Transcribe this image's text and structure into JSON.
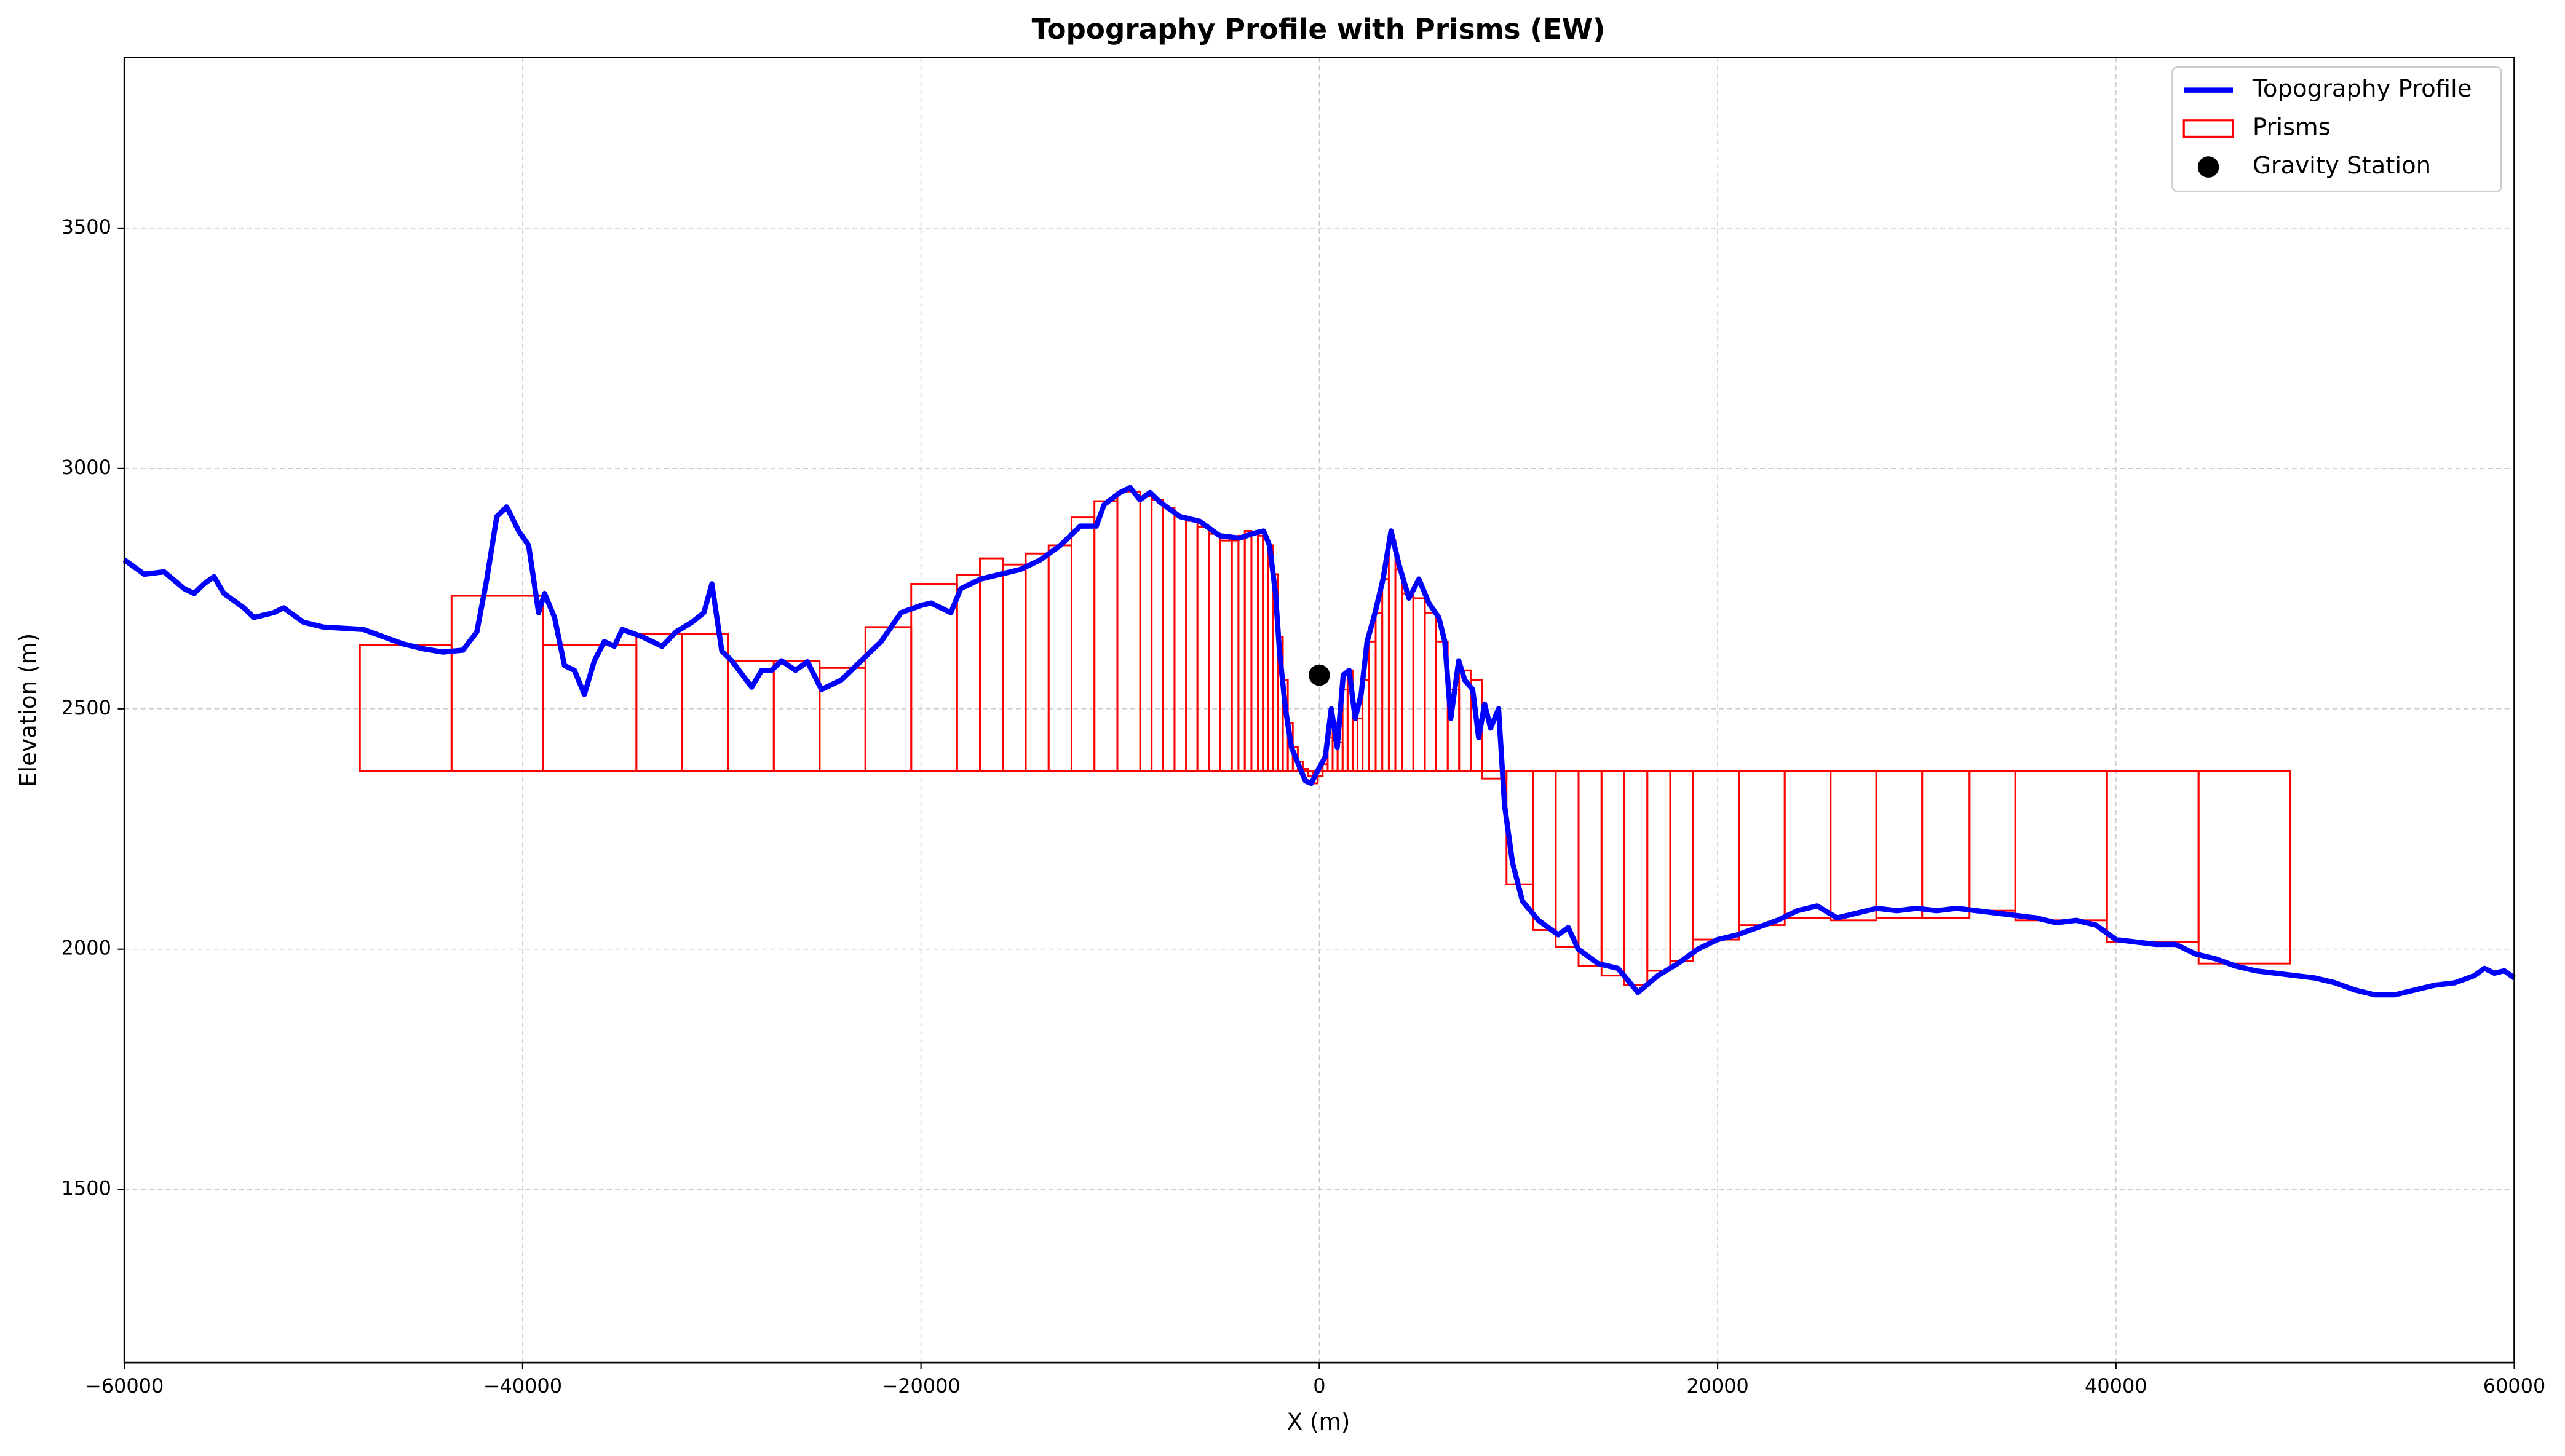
{
  "chart_data": {
    "type": "line",
    "title": "Topography Profile with Prisms (EW)",
    "x_label": "X (m)",
    "y_label": "Elevation (m)",
    "xlim": [
      -60000,
      60000
    ],
    "ylim": [
      1140,
      3855
    ],
    "xticks": [
      {
        "value": -60000,
        "label": "−60000"
      },
      {
        "value": -40000,
        "label": "−40000"
      },
      {
        "value": -20000,
        "label": "−20000"
      },
      0,
      20000,
      40000,
      60000
    ],
    "yticks": [
      1500,
      2000,
      2500,
      3000,
      3500
    ],
    "grid": true,
    "legend": "upper right",
    "series": [
      {
        "name": "Topography Profile",
        "type": "line",
        "color": "#0000ff",
        "x": [
          -60000,
          -59000,
          -58000,
          -57000,
          -56500,
          -56000,
          -55500,
          -55000,
          -54000,
          -53500,
          -52500,
          -52000,
          -51000,
          -50000,
          -48000,
          -47000,
          -46000,
          -45000,
          -44000,
          -43000,
          -42300,
          -41800,
          -41300,
          -40800,
          -40200,
          -39700,
          -39200,
          -38900,
          -38400,
          -37900,
          -37400,
          -36900,
          -36400,
          -35900,
          -35400,
          -35000,
          -34000,
          -33000,
          -32300,
          -31500,
          -30900,
          -30500,
          -30000,
          -29500,
          -28500,
          -28000,
          -27500,
          -27000,
          -26300,
          -25700,
          -25000,
          -24000,
          -23000,
          -22000,
          -21000,
          -20000,
          -19500,
          -18500,
          -18000,
          -17000,
          -16000,
          -15000,
          -14000,
          -13000,
          -12000,
          -11200,
          -10800,
          -10000,
          -9500,
          -9000,
          -8500,
          -8000,
          -7000,
          -6000,
          -5000,
          -4000,
          -3300,
          -2800,
          -2500,
          -2200,
          -2000,
          -1700,
          -1400,
          -1000,
          -700,
          -400,
          -100,
          300,
          600,
          900,
          1200,
          1500,
          1800,
          2100,
          2400,
          2800,
          3200,
          3600,
          4000,
          4500,
          5000,
          5500,
          6000,
          6300,
          6600,
          7000,
          7300,
          7700,
          8000,
          8300,
          8600,
          9000,
          9300,
          9700,
          10200,
          11000,
          12000,
          12500,
          13000,
          14000,
          15000,
          16000,
          17000,
          18000,
          19000,
          20000,
          21000,
          22000,
          23000,
          24000,
          25000,
          26000,
          27000,
          28000,
          29000,
          30000,
          31000,
          32000,
          33000,
          34000,
          35000,
          36000,
          37000,
          38000,
          39000,
          40000,
          41000,
          42000,
          43000,
          44000,
          45000,
          46000,
          47000,
          48000,
          49000,
          50000,
          51000,
          52000,
          53000,
          54000,
          55000,
          56000,
          57000,
          58000,
          58500,
          59000,
          59500,
          60000
        ],
        "y": [
          2810,
          2780,
          2785,
          2750,
          2740,
          2760,
          2775,
          2740,
          2710,
          2690,
          2700,
          2710,
          2680,
          2670,
          2665,
          2650,
          2635,
          2625,
          2618,
          2622,
          2660,
          2770,
          2900,
          2920,
          2870,
          2840,
          2700,
          2740,
          2690,
          2590,
          2580,
          2530,
          2600,
          2640,
          2630,
          2665,
          2650,
          2630,
          2660,
          2680,
          2700,
          2760,
          2620,
          2600,
          2545,
          2580,
          2580,
          2600,
          2580,
          2598,
          2540,
          2560,
          2600,
          2640,
          2700,
          2715,
          2720,
          2700,
          2750,
          2770,
          2780,
          2790,
          2810,
          2840,
          2880,
          2880,
          2925,
          2950,
          2960,
          2935,
          2950,
          2930,
          2900,
          2890,
          2860,
          2855,
          2865,
          2870,
          2840,
          2740,
          2620,
          2500,
          2420,
          2380,
          2350,
          2345,
          2370,
          2400,
          2500,
          2420,
          2570,
          2580,
          2480,
          2530,
          2640,
          2700,
          2770,
          2870,
          2800,
          2730,
          2770,
          2720,
          2690,
          2640,
          2480,
          2600,
          2560,
          2540,
          2440,
          2510,
          2460,
          2500,
          2300,
          2180,
          2100,
          2060,
          2030,
          2045,
          2000,
          1970,
          1960,
          1910,
          1945,
          1970,
          2000,
          2020,
          2030,
          2045,
          2060,
          2080,
          2090,
          2065,
          2075,
          2085,
          2080,
          2085,
          2080,
          2085,
          2080,
          2075,
          2070,
          2065,
          2055,
          2060,
          2050,
          2020,
          2015,
          2010,
          2010,
          1990,
          1980,
          1965,
          1955,
          1950,
          1945,
          1940,
          1930,
          1915,
          1905,
          1905,
          1915,
          1925,
          1930,
          1945,
          1960,
          1950,
          1955,
          1940
        ]
      },
      {
        "name": "Prisms",
        "type": "prism",
        "color": "#ff0000",
        "base": 2370,
        "edges": [
          -48170,
          -43570,
          -38970,
          -34290,
          -31990,
          -29690,
          -27390,
          -25090,
          -22790,
          -20490,
          -18190,
          -17040,
          -15890,
          -14740,
          -13590,
          -12440,
          -11290,
          -10140,
          -8990,
          -8420,
          -7840,
          -7270,
          -6690,
          -6120,
          -5540,
          -4970,
          -4390,
          -4060,
          -3740,
          -3410,
          -3080,
          -2830,
          -2580,
          -2330,
          -2080,
          -1830,
          -1580,
          -1330,
          -1080,
          -830,
          -580,
          -330,
          -80,
          170,
          420,
          670,
          920,
          1170,
          1420,
          1670,
          1920,
          2170,
          2500,
          2830,
          3160,
          3490,
          3820,
          4150,
          4720,
          5300,
          5870,
          6450,
          7020,
          7600,
          8170,
          9400,
          10720,
          11870,
          13020,
          14170,
          15320,
          16470,
          17620,
          18770,
          21070,
          23370,
          25670,
          27970,
          30270,
          32650,
          34950,
          39550,
          44150,
          48750
        ],
        "tops": [
          2633,
          2735,
          2633,
          2656,
          2656,
          2600,
          2600,
          2585,
          2670,
          2760,
          2779,
          2813,
          2800,
          2823,
          2840,
          2898,
          2932,
          2952,
          2942,
          2935,
          2918,
          2901,
          2891,
          2878,
          2864,
          2850,
          2850,
          2860,
          2870,
          2867,
          2860,
          2855,
          2840,
          2780,
          2650,
          2560,
          2470,
          2420,
          2390,
          2375,
          2360,
          2345,
          2360,
          2385,
          2440,
          2470,
          2430,
          2540,
          2580,
          2500,
          2480,
          2560,
          2640,
          2700,
          2770,
          2850,
          2790,
          2740,
          2730,
          2700,
          2640,
          2540,
          2580,
          2560,
          2355,
          2135,
          2040,
          2005,
          1965,
          1945,
          1925,
          1955,
          1975,
          2020,
          2050,
          2065,
          2060,
          2065,
          2065,
          2080,
          2060,
          2015,
          1970
        ]
      },
      {
        "name": "Gravity Station",
        "type": "scatter",
        "color": "#000000",
        "x": [
          0
        ],
        "y": [
          2570
        ]
      }
    ]
  }
}
